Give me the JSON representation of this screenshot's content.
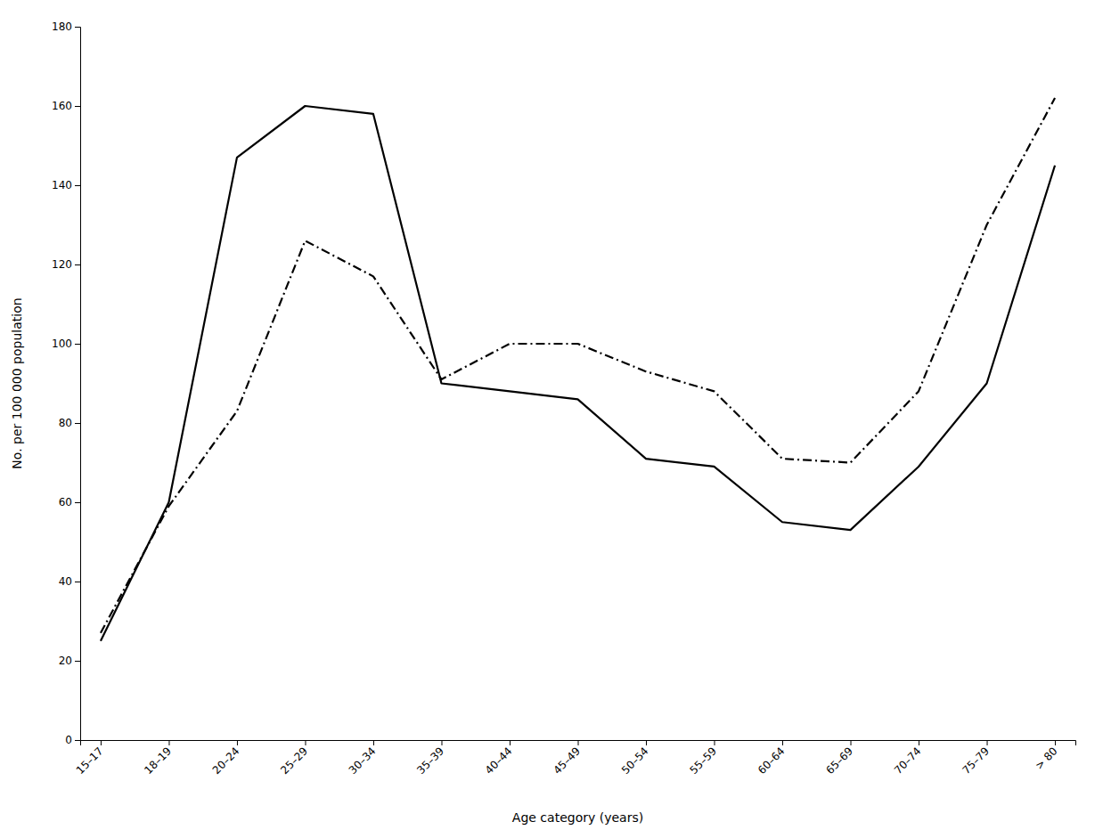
{
  "chart_data": {
    "type": "line",
    "categories": [
      "15–17",
      "18–19",
      "20–24",
      "25–29",
      "30–34",
      "35–39",
      "40–44",
      "45–49",
      "50–54",
      "55–59",
      "60–64",
      "65–69",
      "70–74",
      "75–79",
      "> 80"
    ],
    "series": [
      {
        "color": "#000000",
        "line_style": "solid",
        "values": [
          25,
          60,
          147,
          160,
          158,
          90,
          88,
          86,
          71,
          69,
          55,
          53,
          69,
          90,
          145
        ]
      },
      {
        "color": "#000000",
        "line_style": "dashdot",
        "values": [
          27,
          59,
          83,
          126,
          117,
          91,
          100,
          100,
          93,
          88,
          71,
          70,
          88,
          130,
          162
        ]
      }
    ],
    "xlabel": "Age category (years)",
    "ylabel": "No. per 100 000 population",
    "ylim": [
      0,
      180
    ],
    "yticks": [
      0,
      20,
      40,
      60,
      80,
      100,
      120,
      140,
      160,
      180
    ],
    "grid": false
  }
}
